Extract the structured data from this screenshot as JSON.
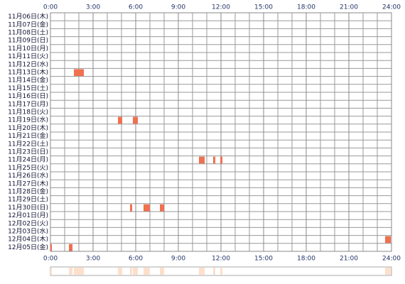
{
  "chart_data": {
    "type": "timeline",
    "categories": [
      "11月06日(木)",
      "11月07日(金)",
      "11月08日(土)",
      "11月09日(日)",
      "11月10日(月)",
      "11月11日(火)",
      "11月12日(水)",
      "11月13日(木)",
      "11月14日(金)",
      "11月15日(土)",
      "11月16日(日)",
      "11月17日(月)",
      "11月18日(火)",
      "11月19日(水)",
      "11月20日(木)",
      "11月21日(金)",
      "11月22日(土)",
      "11月23日(日)",
      "11月24日(月)",
      "11月25日(火)",
      "11月26日(水)",
      "11月27日(木)",
      "11月28日(金)",
      "11月29日(土)",
      "11月30日(日)",
      "12月01日(月)",
      "12月02日(火)",
      "12月03日(水)",
      "12月04日(木)",
      "12月05日(金)"
    ],
    "intervals": [
      [],
      [],
      [],
      [],
      [],
      [],
      [],
      [
        [
          1.65,
          2.35
        ]
      ],
      [],
      [],
      [],
      [],
      [],
      [
        [
          4.75,
          5.05
        ],
        [
          5.8,
          6.15
        ]
      ],
      [],
      [],
      [],
      [],
      [
        [
          10.45,
          10.85
        ],
        [
          11.45,
          11.6
        ],
        [
          11.95,
          12.1
        ]
      ],
      [],
      [],
      [],
      [],
      [],
      [
        [
          5.6,
          5.75
        ],
        [
          6.55,
          7.0
        ],
        [
          7.7,
          8.0
        ]
      ],
      [],
      [],
      [],
      [
        [
          23.55,
          23.95
        ]
      ],
      [
        [
          0,
          0.1
        ],
        [
          1.3,
          1.55
        ]
      ]
    ],
    "color": "#f07050",
    "summary_color": "#fde0cc",
    "xlim": [
      0,
      24
    ],
    "xticks": [
      {
        "value": 0,
        "label": "0:00"
      },
      {
        "value": 3,
        "label": "3:00"
      },
      {
        "value": 6,
        "label": "6:00"
      },
      {
        "value": 9,
        "label": "9:00"
      },
      {
        "value": 12,
        "label": "12:00"
      },
      {
        "value": 15,
        "label": "15:00"
      },
      {
        "value": 18,
        "label": "18:00"
      },
      {
        "value": 21,
        "label": "21:00"
      },
      {
        "value": 24,
        "label": "24:00"
      }
    ],
    "grid": true
  }
}
